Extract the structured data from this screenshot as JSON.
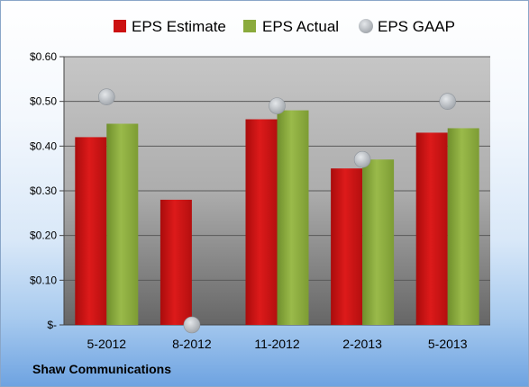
{
  "chart_data": {
    "type": "bar",
    "categories": [
      "5-2012",
      "8-2012",
      "11-2012",
      "2-2013",
      "5-2013"
    ],
    "series": [
      {
        "name": "EPS Estimate",
        "kind": "bar",
        "color": "#cc1111",
        "values": [
          0.42,
          0.28,
          0.46,
          0.35,
          0.43
        ]
      },
      {
        "name": "EPS Actual",
        "kind": "bar",
        "color": "#8aaa3c",
        "values": [
          0.45,
          null,
          0.48,
          0.37,
          0.44
        ]
      },
      {
        "name": "EPS GAAP",
        "kind": "marker",
        "color": "#b9bec4",
        "values": [
          0.51,
          0.0,
          0.49,
          0.37,
          0.5
        ]
      }
    ],
    "y_ticks": [
      {
        "value": 0.0,
        "label": "$-"
      },
      {
        "value": 0.1,
        "label": "$0.10"
      },
      {
        "value": 0.2,
        "label": "$0.20"
      },
      {
        "value": 0.3,
        "label": "$0.30"
      },
      {
        "value": 0.4,
        "label": "$0.40"
      },
      {
        "value": 0.5,
        "label": "$0.50"
      },
      {
        "value": 0.6,
        "label": "$0.60"
      }
    ],
    "ylim": [
      0,
      0.6
    ],
    "grid": true,
    "legend_position": "top",
    "caption": "Shaw Communications"
  }
}
